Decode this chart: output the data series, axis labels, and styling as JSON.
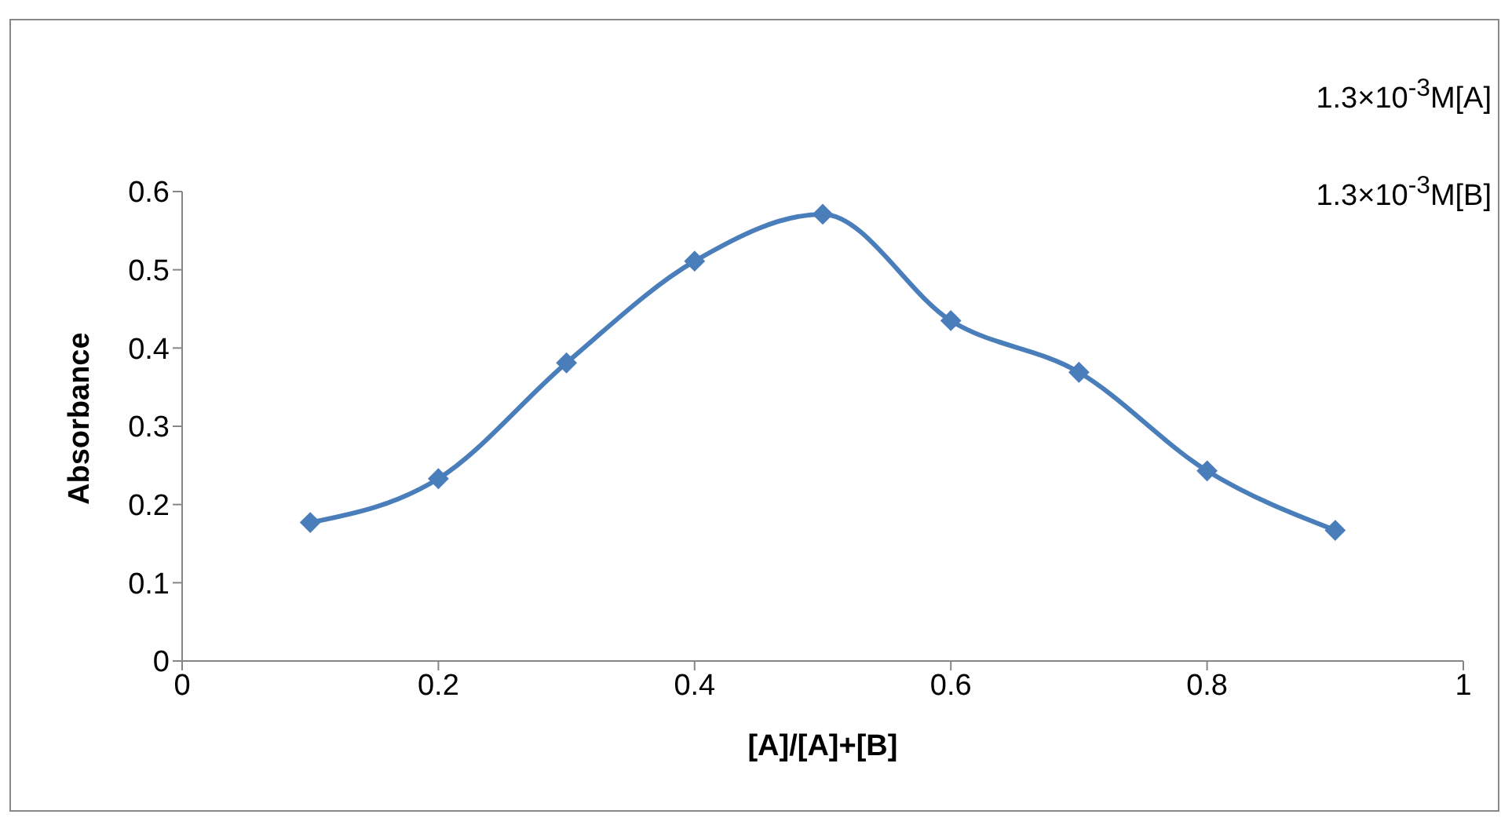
{
  "chart_data": {
    "type": "line",
    "xlabel": "[A]/[A]+[B]",
    "ylabel": "Absorbance",
    "annotations": [
      "1.3×10$^{-3}$M[A]",
      "1.3×10$^{-3}$M[B]"
    ],
    "x": [
      0.1,
      0.2,
      0.3,
      0.4,
      0.5,
      0.6,
      0.7,
      0.8,
      0.9
    ],
    "series": [
      {
        "color": "#4a7ebb",
        "values": [
          0.177,
          0.233,
          0.381,
          0.511,
          0.571,
          0.435,
          0.369,
          0.243,
          0.167
        ]
      }
    ],
    "xlim": [
      0,
      1
    ],
    "xticks": [
      0,
      0.2,
      0.4,
      0.6,
      0.8,
      1
    ],
    "ylim": [
      0,
      0.6
    ],
    "yticks": [
      0,
      0.1,
      0.2,
      0.3,
      0.4,
      0.5,
      0.6
    ],
    "marker": "diamond",
    "line_style": "solid"
  }
}
